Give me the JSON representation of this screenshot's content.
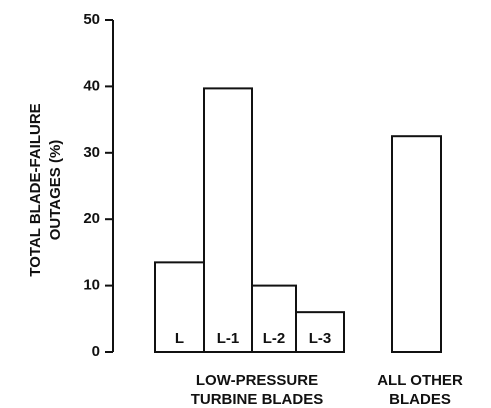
{
  "chart_data": {
    "type": "bar",
    "categories": [
      "L",
      "L-1",
      "L-2",
      "L-3",
      null
    ],
    "values": [
      13.5,
      39.7,
      10,
      6,
      32.5
    ],
    "color": "#ffffff",
    "ylim": [
      0,
      50
    ],
    "yticks": [
      0,
      10,
      20,
      30,
      40,
      50
    ],
    "ylabel_lines": [
      "TOTAL BLADE-FAILURE",
      "OUTAGES (%)"
    ],
    "groups": [
      {
        "label_lines": [
          "LOW-PRESSURE",
          "TURBINE BLADES"
        ]
      },
      {
        "label_lines": [
          "ALL OTHER",
          "BLADES"
        ]
      }
    ]
  }
}
